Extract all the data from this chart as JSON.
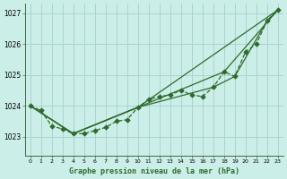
{
  "title": "Graphe pression niveau de la mer (hPa)",
  "bg_color": "#cceee8",
  "grid_color": "#aad4ce",
  "line_color": "#2d6b2d",
  "xlim": [
    -0.5,
    23.5
  ],
  "ylim": [
    1022.4,
    1027.3
  ],
  "yticks": [
    1023,
    1024,
    1025,
    1026,
    1027
  ],
  "xticks": [
    0,
    1,
    2,
    3,
    4,
    5,
    6,
    7,
    8,
    9,
    10,
    11,
    12,
    13,
    14,
    15,
    16,
    17,
    18,
    19,
    20,
    21,
    22,
    23
  ],
  "series_marker_x": [
    0,
    1,
    2,
    3,
    4,
    5,
    6,
    7,
    8,
    9,
    10,
    11,
    12,
    13,
    14,
    15,
    16,
    17,
    18,
    19,
    20,
    21,
    22,
    23
  ],
  "series_marker_y": [
    1024.0,
    1023.85,
    1023.35,
    1023.25,
    1023.1,
    1023.1,
    1023.2,
    1023.3,
    1023.5,
    1023.55,
    1023.95,
    1024.2,
    1024.3,
    1024.35,
    1024.5,
    1024.35,
    1024.3,
    1024.6,
    1025.1,
    1024.95,
    1025.75,
    1026.0,
    1026.75,
    1027.1
  ],
  "series_nomarker_x": [
    0,
    1,
    2,
    3,
    4,
    5,
    6,
    7,
    8,
    9,
    10,
    11,
    12,
    13,
    14,
    15,
    16,
    17,
    18,
    19,
    20,
    21,
    22,
    23
  ],
  "series_nomarker_y": [
    1024.0,
    1023.85,
    1023.35,
    1023.25,
    1023.1,
    1023.1,
    1023.2,
    1023.3,
    1023.5,
    1023.55,
    1023.95,
    1024.2,
    1024.3,
    1024.35,
    1024.5,
    1024.35,
    1024.3,
    1024.6,
    1025.1,
    1024.95,
    1025.75,
    1026.0,
    1026.75,
    1027.1
  ],
  "trend1_x": [
    0,
    4,
    10,
    23
  ],
  "trend1_y": [
    1024.0,
    1023.1,
    1023.95,
    1027.1
  ],
  "trend2_x": [
    0,
    4,
    10,
    18,
    23
  ],
  "trend2_y": [
    1024.0,
    1023.1,
    1023.95,
    1025.1,
    1027.1
  ],
  "trend3_x": [
    0,
    4,
    10,
    17,
    19,
    22,
    23
  ],
  "trend3_y": [
    1024.0,
    1023.1,
    1023.95,
    1024.6,
    1024.95,
    1026.75,
    1027.1
  ]
}
